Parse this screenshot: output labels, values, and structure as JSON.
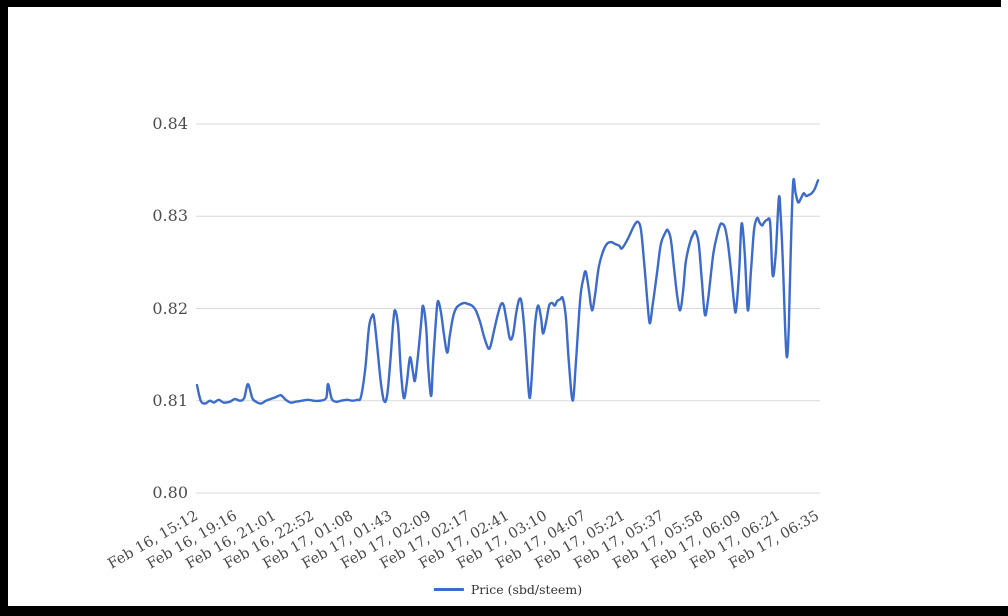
{
  "colors": {
    "line": "#3c6bcb",
    "grid": "#d9d9d9",
    "axis_text": "#4a4a4a",
    "legend_text": "#333333",
    "background": "#ffffff",
    "frame": "#000000"
  },
  "legend": {
    "label": "Price (sbd/steem)"
  },
  "chart_data": {
    "type": "line",
    "title": "",
    "xlabel": "",
    "ylabel": "",
    "grid": "horizontal",
    "legend_position": "bottom-center",
    "ylim": [
      0.8,
      0.84
    ],
    "y_ticks": [
      "0.84",
      "0.83",
      "0.82",
      "0.81",
      "0.80"
    ],
    "x_tick_labels": [
      "Feb 16, 15:12",
      "Feb 16, 19:16",
      "Feb 16, 21:01",
      "Feb 16, 22:52",
      "Feb 17, 01:08",
      "Feb 17, 01:43",
      "Feb 17, 02:09",
      "Feb 17, 02:17",
      "Feb 17, 02:41",
      "Feb 17, 03:10",
      "Feb 17, 04:07",
      "Feb 17, 05:21",
      "Feb 17, 05:37",
      "Feb 17, 05:58",
      "Feb 17, 06:09",
      "Feb 17, 06:21",
      "Feb 17, 06:35"
    ],
    "series": [
      {
        "name": "Price (sbd/steem)",
        "points": [
          [
            0.0,
            0.8117
          ],
          [
            0.006,
            0.81
          ],
          [
            0.013,
            0.8097
          ],
          [
            0.021,
            0.81
          ],
          [
            0.027,
            0.8098
          ],
          [
            0.035,
            0.8101
          ],
          [
            0.043,
            0.8098
          ],
          [
            0.053,
            0.8099
          ],
          [
            0.061,
            0.8102
          ],
          [
            0.069,
            0.81
          ],
          [
            0.076,
            0.8103
          ],
          [
            0.082,
            0.8118
          ],
          [
            0.089,
            0.8103
          ],
          [
            0.095,
            0.8099
          ],
          [
            0.103,
            0.8097
          ],
          [
            0.111,
            0.81
          ],
          [
            0.119,
            0.8102
          ],
          [
            0.127,
            0.8104
          ],
          [
            0.135,
            0.8106
          ],
          [
            0.143,
            0.8101
          ],
          [
            0.151,
            0.8098
          ],
          [
            0.159,
            0.8099
          ],
          [
            0.169,
            0.81
          ],
          [
            0.179,
            0.8101
          ],
          [
            0.188,
            0.81
          ],
          [
            0.198,
            0.81
          ],
          [
            0.208,
            0.8103
          ],
          [
            0.211,
            0.8118
          ],
          [
            0.217,
            0.8102
          ],
          [
            0.224,
            0.8099
          ],
          [
            0.232,
            0.81
          ],
          [
            0.242,
            0.8101
          ],
          [
            0.25,
            0.81
          ],
          [
            0.258,
            0.8101
          ],
          [
            0.264,
            0.8104
          ],
          [
            0.271,
            0.8135
          ],
          [
            0.277,
            0.818
          ],
          [
            0.282,
            0.8192
          ],
          [
            0.285,
            0.819
          ],
          [
            0.29,
            0.816
          ],
          [
            0.296,
            0.812
          ],
          [
            0.301,
            0.81
          ],
          [
            0.306,
            0.8105
          ],
          [
            0.311,
            0.814
          ],
          [
            0.316,
            0.8185
          ],
          [
            0.319,
            0.8198
          ],
          [
            0.324,
            0.818
          ],
          [
            0.328,
            0.8135
          ],
          [
            0.333,
            0.8103
          ],
          [
            0.338,
            0.812
          ],
          [
            0.343,
            0.8147
          ],
          [
            0.348,
            0.813
          ],
          [
            0.351,
            0.8122
          ],
          [
            0.356,
            0.815
          ],
          [
            0.361,
            0.8185
          ],
          [
            0.364,
            0.8203
          ],
          [
            0.369,
            0.818
          ],
          [
            0.372,
            0.814
          ],
          [
            0.377,
            0.8105
          ],
          [
            0.38,
            0.814
          ],
          [
            0.385,
            0.819
          ],
          [
            0.388,
            0.8208
          ],
          [
            0.393,
            0.8195
          ],
          [
            0.398,
            0.817
          ],
          [
            0.403,
            0.8152
          ],
          [
            0.407,
            0.817
          ],
          [
            0.412,
            0.819
          ],
          [
            0.417,
            0.82
          ],
          [
            0.423,
            0.8204
          ],
          [
            0.43,
            0.8206
          ],
          [
            0.436,
            0.8205
          ],
          [
            0.443,
            0.8203
          ],
          [
            0.449,
            0.8198
          ],
          [
            0.456,
            0.8185
          ],
          [
            0.462,
            0.817
          ],
          [
            0.469,
            0.8157
          ],
          [
            0.473,
            0.816
          ],
          [
            0.478,
            0.8175
          ],
          [
            0.485,
            0.8195
          ],
          [
            0.49,
            0.8205
          ],
          [
            0.494,
            0.8203
          ],
          [
            0.499,
            0.8185
          ],
          [
            0.504,
            0.8167
          ],
          [
            0.509,
            0.8172
          ],
          [
            0.514,
            0.8195
          ],
          [
            0.519,
            0.821
          ],
          [
            0.523,
            0.8205
          ],
          [
            0.528,
            0.817
          ],
          [
            0.533,
            0.812
          ],
          [
            0.536,
            0.8103
          ],
          [
            0.539,
            0.8125
          ],
          [
            0.544,
            0.818
          ],
          [
            0.549,
            0.8203
          ],
          [
            0.554,
            0.819
          ],
          [
            0.557,
            0.8173
          ],
          [
            0.562,
            0.8185
          ],
          [
            0.567,
            0.8203
          ],
          [
            0.572,
            0.8206
          ],
          [
            0.576,
            0.8203
          ],
          [
            0.58,
            0.8208
          ],
          [
            0.585,
            0.821
          ],
          [
            0.589,
            0.8211
          ],
          [
            0.594,
            0.819
          ],
          [
            0.599,
            0.814
          ],
          [
            0.605,
            0.81
          ],
          [
            0.61,
            0.814
          ],
          [
            0.617,
            0.821
          ],
          [
            0.622,
            0.8232
          ],
          [
            0.626,
            0.824
          ],
          [
            0.631,
            0.822
          ],
          [
            0.636,
            0.8198
          ],
          [
            0.641,
            0.8215
          ],
          [
            0.647,
            0.8245
          ],
          [
            0.654,
            0.8262
          ],
          [
            0.66,
            0.827
          ],
          [
            0.667,
            0.8272
          ],
          [
            0.673,
            0.827
          ],
          [
            0.68,
            0.8268
          ],
          [
            0.684,
            0.8265
          ],
          [
            0.691,
            0.8272
          ],
          [
            0.697,
            0.828
          ],
          [
            0.704,
            0.829
          ],
          [
            0.71,
            0.8294
          ],
          [
            0.715,
            0.8285
          ],
          [
            0.72,
            0.825
          ],
          [
            0.725,
            0.821
          ],
          [
            0.729,
            0.8184
          ],
          [
            0.734,
            0.8205
          ],
          [
            0.741,
            0.824
          ],
          [
            0.747,
            0.827
          ],
          [
            0.754,
            0.8282
          ],
          [
            0.758,
            0.8285
          ],
          [
            0.763,
            0.8275
          ],
          [
            0.768,
            0.8245
          ],
          [
            0.773,
            0.8215
          ],
          [
            0.778,
            0.8198
          ],
          [
            0.783,
            0.822
          ],
          [
            0.787,
            0.825
          ],
          [
            0.794,
            0.8272
          ],
          [
            0.8,
            0.8282
          ],
          [
            0.803,
            0.8283
          ],
          [
            0.808,
            0.827
          ],
          [
            0.813,
            0.823
          ],
          [
            0.818,
            0.8193
          ],
          [
            0.823,
            0.821
          ],
          [
            0.828,
            0.824
          ],
          [
            0.832,
            0.8262
          ],
          [
            0.837,
            0.8278
          ],
          [
            0.842,
            0.829
          ],
          [
            0.845,
            0.8292
          ],
          [
            0.85,
            0.8288
          ],
          [
            0.855,
            0.827
          ],
          [
            0.86,
            0.824
          ],
          [
            0.865,
            0.8205
          ],
          [
            0.868,
            0.8198
          ],
          [
            0.873,
            0.824
          ],
          [
            0.877,
            0.8292
          ],
          [
            0.882,
            0.826
          ],
          [
            0.887,
            0.8198
          ],
          [
            0.892,
            0.824
          ],
          [
            0.897,
            0.8285
          ],
          [
            0.902,
            0.8298
          ],
          [
            0.906,
            0.8293
          ],
          [
            0.91,
            0.829
          ],
          [
            0.913,
            0.8293
          ],
          [
            0.918,
            0.8296
          ],
          [
            0.923,
            0.8292
          ],
          [
            0.927,
            0.8236
          ],
          [
            0.932,
            0.826
          ],
          [
            0.937,
            0.832
          ],
          [
            0.94,
            0.83
          ],
          [
            0.944,
            0.824
          ],
          [
            0.947,
            0.818
          ],
          [
            0.95,
            0.8147
          ],
          [
            0.953,
            0.818
          ],
          [
            0.956,
            0.826
          ],
          [
            0.96,
            0.8337
          ],
          [
            0.964,
            0.8325
          ],
          [
            0.968,
            0.8315
          ],
          [
            0.973,
            0.832
          ],
          [
            0.977,
            0.8325
          ],
          [
            0.981,
            0.8322
          ],
          [
            0.985,
            0.8323
          ],
          [
            0.99,
            0.8325
          ],
          [
            0.995,
            0.833
          ],
          [
            1.0,
            0.8339
          ]
        ]
      }
    ]
  }
}
